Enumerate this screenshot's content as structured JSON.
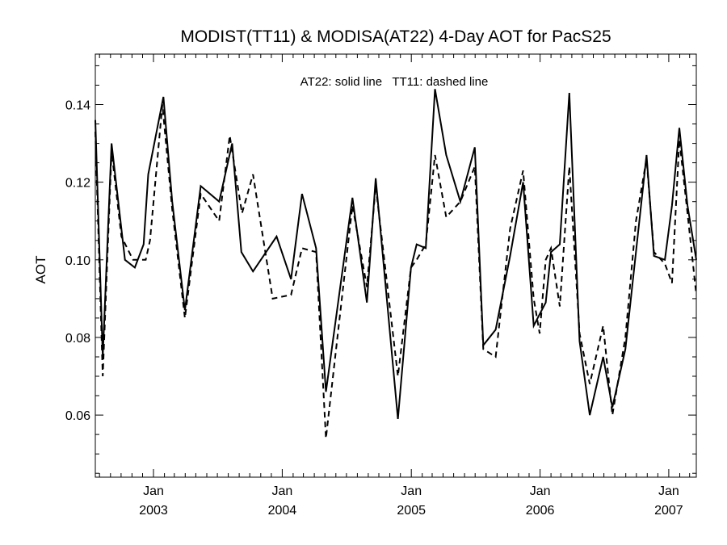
{
  "chart_data": {
    "type": "line",
    "title": "MODIST(TT11) & MODISA(AT22) 4-Day AOT for PacS25",
    "annotation": "AT22: solid line   TT11: dashed line",
    "xlabel": "",
    "ylabel": "AOT",
    "xlim": [
      "2002-07-20",
      "2007-03-20"
    ],
    "ylim": [
      0.044,
      0.153
    ],
    "y_ticks": [
      0.06,
      0.08,
      0.1,
      0.12,
      0.14
    ],
    "y_tick_labels": [
      "0.06",
      "0.08",
      "0.10",
      "0.12",
      "0.14"
    ],
    "x_ticks": [
      {
        "date": "2003-01-01",
        "month": "Jan",
        "year": "2003"
      },
      {
        "date": "2004-01-01",
        "month": "Jan",
        "year": "2004"
      },
      {
        "date": "2005-01-01",
        "month": "Jan",
        "year": "2005"
      },
      {
        "date": "2006-01-01",
        "month": "Jan",
        "year": "2006"
      },
      {
        "date": "2007-01-01",
        "month": "Jan",
        "year": "2007"
      }
    ],
    "grid": false,
    "series": [
      {
        "name": "AT22",
        "style": "solid",
        "color": "#000000",
        "points": [
          [
            "2002-07-20",
            0.136
          ],
          [
            "2002-08-10",
            0.075
          ],
          [
            "2002-09-04",
            0.13
          ],
          [
            "2002-10-12",
            0.1
          ],
          [
            "2002-11-09",
            0.098
          ],
          [
            "2002-12-04",
            0.104
          ],
          [
            "2002-12-17",
            0.122
          ],
          [
            "2003-01-29",
            0.142
          ],
          [
            "2003-02-23",
            0.115
          ],
          [
            "2003-03-31",
            0.087
          ],
          [
            "2003-05-15",
            0.119
          ],
          [
            "2003-07-06",
            0.115
          ],
          [
            "2003-08-12",
            0.13
          ],
          [
            "2003-09-07",
            0.102
          ],
          [
            "2003-10-10",
            0.097
          ],
          [
            "2003-12-16",
            0.106
          ],
          [
            "2004-01-26",
            0.095
          ],
          [
            "2004-02-26",
            0.117
          ],
          [
            "2004-04-06",
            0.103
          ],
          [
            "2004-05-04",
            0.066
          ],
          [
            "2004-07-18",
            0.116
          ],
          [
            "2004-08-28",
            0.089
          ],
          [
            "2004-09-22",
            0.121
          ],
          [
            "2004-11-24",
            0.059
          ],
          [
            "2004-12-31",
            0.098
          ],
          [
            "2005-01-16",
            0.104
          ],
          [
            "2005-02-11",
            0.103
          ],
          [
            "2005-03-09",
            0.144
          ],
          [
            "2005-04-10",
            0.127
          ],
          [
            "2005-05-20",
            0.115
          ],
          [
            "2005-06-30",
            0.129
          ],
          [
            "2005-07-24",
            0.078
          ],
          [
            "2005-08-28",
            0.082
          ],
          [
            "2005-10-08",
            0.101
          ],
          [
            "2005-11-14",
            0.12
          ],
          [
            "2005-12-14",
            0.083
          ],
          [
            "2005-12-31",
            0.086
          ],
          [
            "2006-01-17",
            0.089
          ],
          [
            "2006-02-01",
            0.102
          ],
          [
            "2006-02-26",
            0.104
          ],
          [
            "2006-03-25",
            0.143
          ],
          [
            "2006-04-23",
            0.079
          ],
          [
            "2006-05-22",
            0.06
          ],
          [
            "2006-06-29",
            0.075
          ],
          [
            "2006-07-25",
            0.062
          ],
          [
            "2006-08-31",
            0.077
          ],
          [
            "2006-09-30",
            0.102
          ],
          [
            "2006-10-30",
            0.127
          ],
          [
            "2006-11-20",
            0.101
          ],
          [
            "2006-12-21",
            0.1
          ],
          [
            "2007-01-10",
            0.114
          ],
          [
            "2007-01-31",
            0.134
          ],
          [
            "2007-02-23",
            0.114
          ],
          [
            "2007-03-20",
            0.1
          ]
        ]
      },
      {
        "name": "TT11",
        "style": "dashed",
        "color": "#000000",
        "points": [
          [
            "2002-07-20",
            0.133
          ],
          [
            "2002-08-10",
            0.07
          ],
          [
            "2002-09-04",
            0.128
          ],
          [
            "2002-10-02",
            0.106
          ],
          [
            "2002-11-04",
            0.1
          ],
          [
            "2002-12-10",
            0.1
          ],
          [
            "2002-12-22",
            0.105
          ],
          [
            "2003-01-26",
            0.14
          ],
          [
            "2003-02-23",
            0.113
          ],
          [
            "2003-03-31",
            0.085
          ],
          [
            "2003-05-15",
            0.117
          ],
          [
            "2003-07-06",
            0.11
          ],
          [
            "2003-08-05",
            0.132
          ],
          [
            "2003-09-09",
            0.112
          ],
          [
            "2003-10-10",
            0.122
          ],
          [
            "2003-12-05",
            0.09
          ],
          [
            "2004-01-26",
            0.091
          ],
          [
            "2004-02-26",
            0.103
          ],
          [
            "2004-04-06",
            0.102
          ],
          [
            "2004-05-04",
            0.054
          ],
          [
            "2004-07-18",
            0.114
          ],
          [
            "2004-08-28",
            0.093
          ],
          [
            "2004-09-22",
            0.119
          ],
          [
            "2004-11-24",
            0.07
          ],
          [
            "2004-12-31",
            0.098
          ],
          [
            "2005-01-16",
            0.1
          ],
          [
            "2005-02-11",
            0.104
          ],
          [
            "2005-03-09",
            0.127
          ],
          [
            "2005-04-10",
            0.111
          ],
          [
            "2005-05-20",
            0.115
          ],
          [
            "2005-06-30",
            0.124
          ],
          [
            "2005-07-24",
            0.077
          ],
          [
            "2005-08-28",
            0.075
          ],
          [
            "2005-10-08",
            0.108
          ],
          [
            "2005-11-14",
            0.123
          ],
          [
            "2005-12-14",
            0.09
          ],
          [
            "2005-12-31",
            0.081
          ],
          [
            "2006-01-17",
            0.1
          ],
          [
            "2006-02-01",
            0.103
          ],
          [
            "2006-02-26",
            0.088
          ],
          [
            "2006-03-25",
            0.124
          ],
          [
            "2006-04-23",
            0.081
          ],
          [
            "2006-05-22",
            0.068
          ],
          [
            "2006-06-29",
            0.083
          ],
          [
            "2006-07-25",
            0.06
          ],
          [
            "2006-08-31",
            0.08
          ],
          [
            "2006-09-30",
            0.11
          ],
          [
            "2006-10-30",
            0.126
          ],
          [
            "2006-11-20",
            0.102
          ],
          [
            "2006-12-21",
            0.099
          ],
          [
            "2007-01-10",
            0.094
          ],
          [
            "2007-01-31",
            0.131
          ],
          [
            "2007-02-23",
            0.112
          ],
          [
            "2007-03-20",
            0.091
          ]
        ]
      }
    ]
  }
}
